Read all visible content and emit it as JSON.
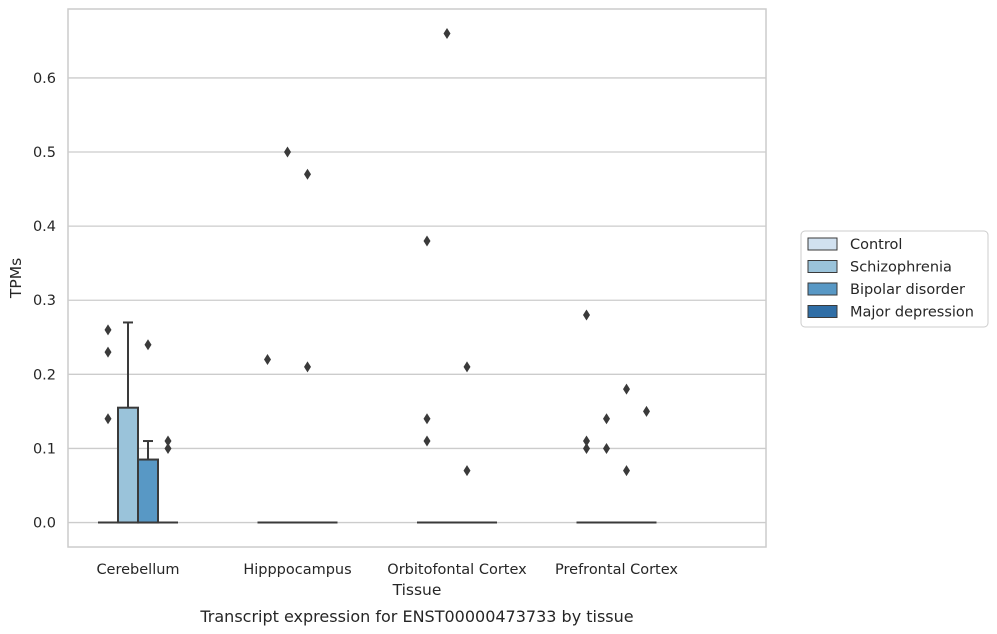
{
  "chart_data": {
    "type": "box",
    "xlabel": "Tissue",
    "ylabel": "TPMs",
    "caption": "Transcript expression for ENST00000473733 by tissue",
    "ylim": [
      -0.033,
      0.693
    ],
    "yticks": [
      0.0,
      0.1,
      0.2,
      0.3,
      0.4,
      0.5,
      0.6
    ],
    "ytick_labels": [
      "0.0",
      "0.1",
      "0.2",
      "0.3",
      "0.4",
      "0.5",
      "0.6"
    ],
    "categories": [
      "Cerebellum",
      "Hipppocampus",
      "Orbitofontal Cortex",
      "Prefrontal Cortex"
    ],
    "grid": true,
    "legend_position": "right",
    "series": [
      {
        "name": "Control",
        "color": "#d1e1f0",
        "boxes": [
          {
            "q1": 0,
            "median": 0,
            "q3": 0,
            "whisker_low": 0,
            "whisker_high": 0,
            "outliers": [
              0.26,
              0.23,
              0.14
            ]
          },
          {
            "q1": 0,
            "median": 0,
            "q3": 0,
            "whisker_low": 0,
            "whisker_high": 0,
            "outliers": [
              0.22
            ]
          },
          {
            "q1": 0,
            "median": 0,
            "q3": 0,
            "whisker_low": 0,
            "whisker_high": 0,
            "outliers": [
              0.38,
              0.14,
              0.11
            ]
          },
          {
            "q1": 0,
            "median": 0,
            "q3": 0,
            "whisker_low": 0,
            "whisker_high": 0,
            "outliers": [
              0.28,
              0.11,
              0.1
            ]
          }
        ]
      },
      {
        "name": "Schizophrenia",
        "color": "#9ac3da",
        "boxes": [
          {
            "q1": 0,
            "median": 0,
            "q3": 0.155,
            "whisker_low": 0,
            "whisker_high": 0.27,
            "outliers": []
          },
          {
            "q1": 0,
            "median": 0,
            "q3": 0,
            "whisker_low": 0,
            "whisker_high": 0,
            "outliers": [
              0.5
            ]
          },
          {
            "q1": 0,
            "median": 0,
            "q3": 0,
            "whisker_low": 0,
            "whisker_high": 0,
            "outliers": [
              0.66
            ]
          },
          {
            "q1": 0,
            "median": 0,
            "q3": 0,
            "whisker_low": 0,
            "whisker_high": 0,
            "outliers": [
              0.14,
              0.1
            ]
          }
        ]
      },
      {
        "name": "Bipolar disorder",
        "color": "#5898c5",
        "boxes": [
          {
            "q1": 0,
            "median": 0,
            "q3": 0.085,
            "whisker_low": 0,
            "whisker_high": 0.11,
            "outliers": [
              0.24
            ]
          },
          {
            "q1": 0,
            "median": 0,
            "q3": 0,
            "whisker_low": 0,
            "whisker_high": 0,
            "outliers": [
              0.47,
              0.21
            ]
          },
          {
            "q1": 0,
            "median": 0,
            "q3": 0,
            "whisker_low": 0,
            "whisker_high": 0,
            "outliers": [
              0.21,
              0.07
            ]
          },
          {
            "q1": 0,
            "median": 0,
            "q3": 0,
            "whisker_low": 0,
            "whisker_high": 0,
            "outliers": [
              0.18,
              0.07
            ]
          }
        ]
      },
      {
        "name": "Major depression",
        "color": "#2f6ea6",
        "boxes": [
          {
            "q1": 0,
            "median": 0,
            "q3": 0,
            "whisker_low": 0,
            "whisker_high": 0,
            "outliers": [
              0.11,
              0.1
            ]
          },
          {
            "q1": 0,
            "median": 0,
            "q3": 0,
            "whisker_low": 0,
            "whisker_high": 0,
            "outliers": []
          },
          {
            "q1": 0,
            "median": 0,
            "q3": 0,
            "whisker_low": 0,
            "whisker_high": 0,
            "outliers": []
          },
          {
            "q1": 0,
            "median": 0,
            "q3": 0,
            "whisker_low": 0,
            "whisker_high": 0,
            "outliers": [
              0.15
            ]
          }
        ]
      }
    ],
    "style": {
      "grid_color": "#cccccc",
      "frame_color": "#cccccc",
      "line_color": "#3a3a3a",
      "outlier_color": "#3a3a3a"
    }
  }
}
